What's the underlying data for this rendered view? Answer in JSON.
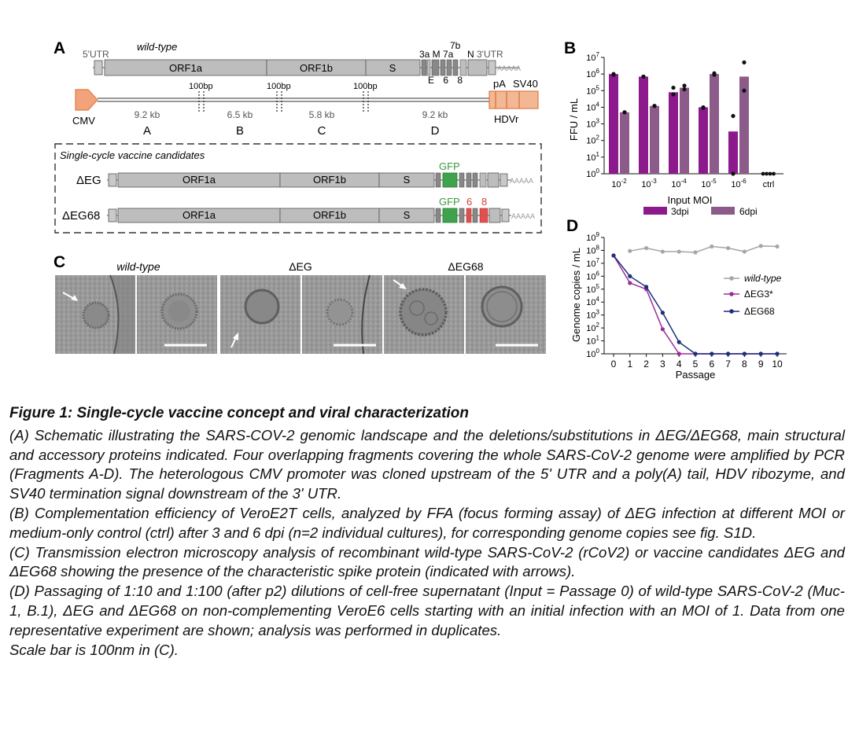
{
  "panelA": {
    "letter": "A",
    "wt_label": "wild-type",
    "utr5": "5'UTR",
    "utr3": "3'UTR",
    "orf1a": "ORF1a",
    "orf1b": "ORF1b",
    "s": "S",
    "accessory_top": "3a M 7a",
    "acc_7b": "7b",
    "acc_n": "N",
    "acc_bottom": "E 6 8",
    "polyA": "AAAAA",
    "bp_labels": [
      "100bp",
      "100bp",
      "100bp"
    ],
    "cmv": "CMV",
    "pA": "pA",
    "sv40": "SV40",
    "hdvr": "HDVr",
    "fragment_sizes": [
      "9.2 kb",
      "6.5 kb",
      "5.8 kb",
      "9.2 kb"
    ],
    "fragment_names": [
      "A",
      "B",
      "C",
      "D"
    ],
    "box_title": "Single-cycle vaccine candidates",
    "cand1": "ΔEG",
    "cand2": "ΔEG68",
    "gfp": "GFP",
    "del6": "6",
    "del8": "8"
  },
  "panelB": {
    "letter": "B",
    "ylabel": "FFU / mL",
    "xlabel": "Input MOI",
    "legend": [
      {
        "name": "3dpi",
        "color": "#8d1a8c"
      },
      {
        "name": "6dpi",
        "color": "#8c5b8a"
      }
    ],
    "chart_data": {
      "type": "bar",
      "categories": [
        "10-2",
        "10-3",
        "10-4",
        "10-5",
        "10-6",
        "ctrl"
      ],
      "series": [
        {
          "name": "3dpi",
          "values": [
            1000000,
            700000,
            80000,
            10000,
            350,
            1
          ]
        },
        {
          "name": "6dpi",
          "values": [
            5000,
            12000,
            150000,
            1000000,
            700000,
            1
          ]
        }
      ],
      "points": [
        {
          "series": "3dpi",
          "values": [
            [
              1000000,
              900000
            ],
            [
              700000,
              700000
            ],
            [
              150000,
              60000
            ],
            [
              10000,
              9000
            ],
            [
              3000,
              1
            ]
          ]
        },
        {
          "series": "6dpi",
          "values": [
            [
              5000,
              5000
            ],
            [
              12000,
              12000
            ],
            [
              200000,
              120000
            ],
            [
              1100000,
              900000
            ],
            [
              5000000,
              100000
            ]
          ]
        }
      ],
      "ctrl_points": [
        1,
        1,
        1,
        1
      ],
      "yscale": "log",
      "ylim": [
        1,
        10000000
      ],
      "yticks": [
        "10^0",
        "10^1",
        "10^2",
        "10^3",
        "10^4",
        "10^5",
        "10^6",
        "10^7"
      ]
    }
  },
  "panelC": {
    "letter": "C",
    "labels": [
      "wild-type",
      "ΔEG",
      "ΔEG68"
    ]
  },
  "panelD": {
    "letter": "D",
    "ylabel": "Genome copies / mL",
    "xlabel": "Passage",
    "chart_data": {
      "type": "line",
      "x": [
        0,
        1,
        2,
        3,
        4,
        5,
        6,
        7,
        8,
        9,
        10
      ],
      "yscale": "log",
      "ylim": [
        1,
        1000000000
      ],
      "yticks": [
        "10^0",
        "10^1",
        "10^2",
        "10^3",
        "10^4",
        "10^5",
        "10^6",
        "10^7",
        "10^8",
        "10^9"
      ],
      "series": [
        {
          "name": "wild-type",
          "color": "#a6a6a6",
          "values": [
            null,
            90000000,
            150000000,
            80000000,
            80000000,
            70000000,
            200000000,
            150000000,
            80000000,
            220000000,
            200000000
          ]
        },
        {
          "name": "ΔEG3*",
          "color": "#9b2d9a",
          "values": [
            40000000,
            300000,
            100000,
            80,
            1,
            1,
            1,
            1,
            1,
            1,
            1
          ]
        },
        {
          "name": "ΔEG68",
          "color": "#1d2f7a",
          "values": [
            40000000,
            1000000,
            150000,
            1500,
            8,
            1,
            1,
            1,
            1,
            1,
            1
          ]
        }
      ]
    }
  },
  "caption": {
    "title": "Figure 1: Single-cycle vaccine concept and viral characterization",
    "a": "(A) Schematic illustrating the SARS-COV-2 genomic landscape and the deletions/substitutions in ΔEG/ΔEG68, main structural and accessory proteins indicated. Four overlapping fragments covering the whole SARS-CoV-2 genome were amplified by PCR (Fragments A-D). The heterologous CMV promoter was cloned upstream of the 5' UTR and a poly(A) tail, HDV ribozyme, and SV40 termination signal downstream of the 3' UTR.",
    "b": "(B) Complementation efficiency of VeroE2T cells, analyzed by FFA (focus forming assay) of ΔEG infection at different MOI or medium-only control (ctrl) after 3 and 6 dpi (n=2 individual cultures), for corresponding genome copies see fig. S1D.",
    "c": "(C) Transmission electron microscopy analysis of recombinant wild-type SARS-CoV-2 (rCoV2) or vaccine candidates ΔEG and ΔEG68 showing the presence of the characteristic spike protein (indicated with arrows).",
    "d": "(D) Passaging of 1:10 and 1:100 (after p2) dilutions of cell-free supernatant (Input = Passage 0) of wild-type SARS-CoV-2 (Muc-1, B.1), ΔEG and ΔEG68 on non-complementing VeroE6 cells starting with an initial infection with an MOI of 1. Data from one representative experiment are shown; analysis was performed in duplicates.",
    "scale": "Scale bar is 100nm in (C)."
  }
}
